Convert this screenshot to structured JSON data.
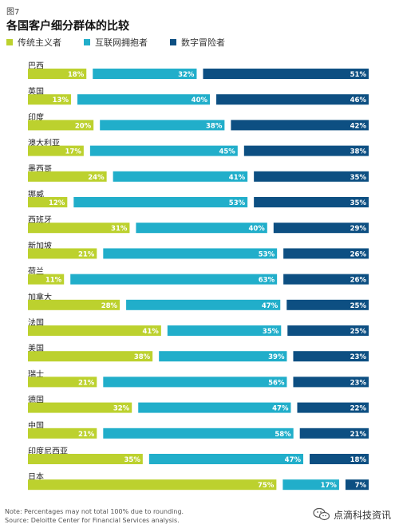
{
  "figure_label": "图7",
  "watermark": "点滴科技资讯",
  "chart_data": {
    "type": "bar",
    "stacked": true,
    "orientation": "horizontal",
    "title": "各国客户细分群体的比较",
    "categories": [
      "巴西",
      "英国",
      "印度",
      "澳大利亚",
      "墨西哥",
      "挪威",
      "西班牙",
      "新加坡",
      "荷兰",
      "加拿大",
      "法国",
      "美国",
      "瑞士",
      "德国",
      "中国",
      "印度尼西亚",
      "日本"
    ],
    "series": [
      {
        "name": "传统主义者",
        "color": "#bcd12e",
        "values": [
          18,
          13,
          20,
          17,
          24,
          12,
          31,
          21,
          11,
          28,
          41,
          38,
          21,
          32,
          21,
          35,
          75
        ]
      },
      {
        "name": "互联网拥抱者",
        "color": "#21aeca",
        "values": [
          32,
          40,
          38,
          45,
          41,
          53,
          40,
          53,
          63,
          47,
          35,
          39,
          56,
          47,
          58,
          47,
          17
        ]
      },
      {
        "name": "数字冒险者",
        "color": "#0d4f82",
        "values": [
          51,
          46,
          42,
          38,
          35,
          35,
          29,
          26,
          26,
          25,
          25,
          23,
          23,
          22,
          21,
          18,
          7
        ]
      }
    ],
    "value_suffix": "%",
    "notes": [
      "Note: Percentages may not total 100% due to rounding.",
      "Source: Deloitte Center for Financial Services analysis."
    ]
  }
}
